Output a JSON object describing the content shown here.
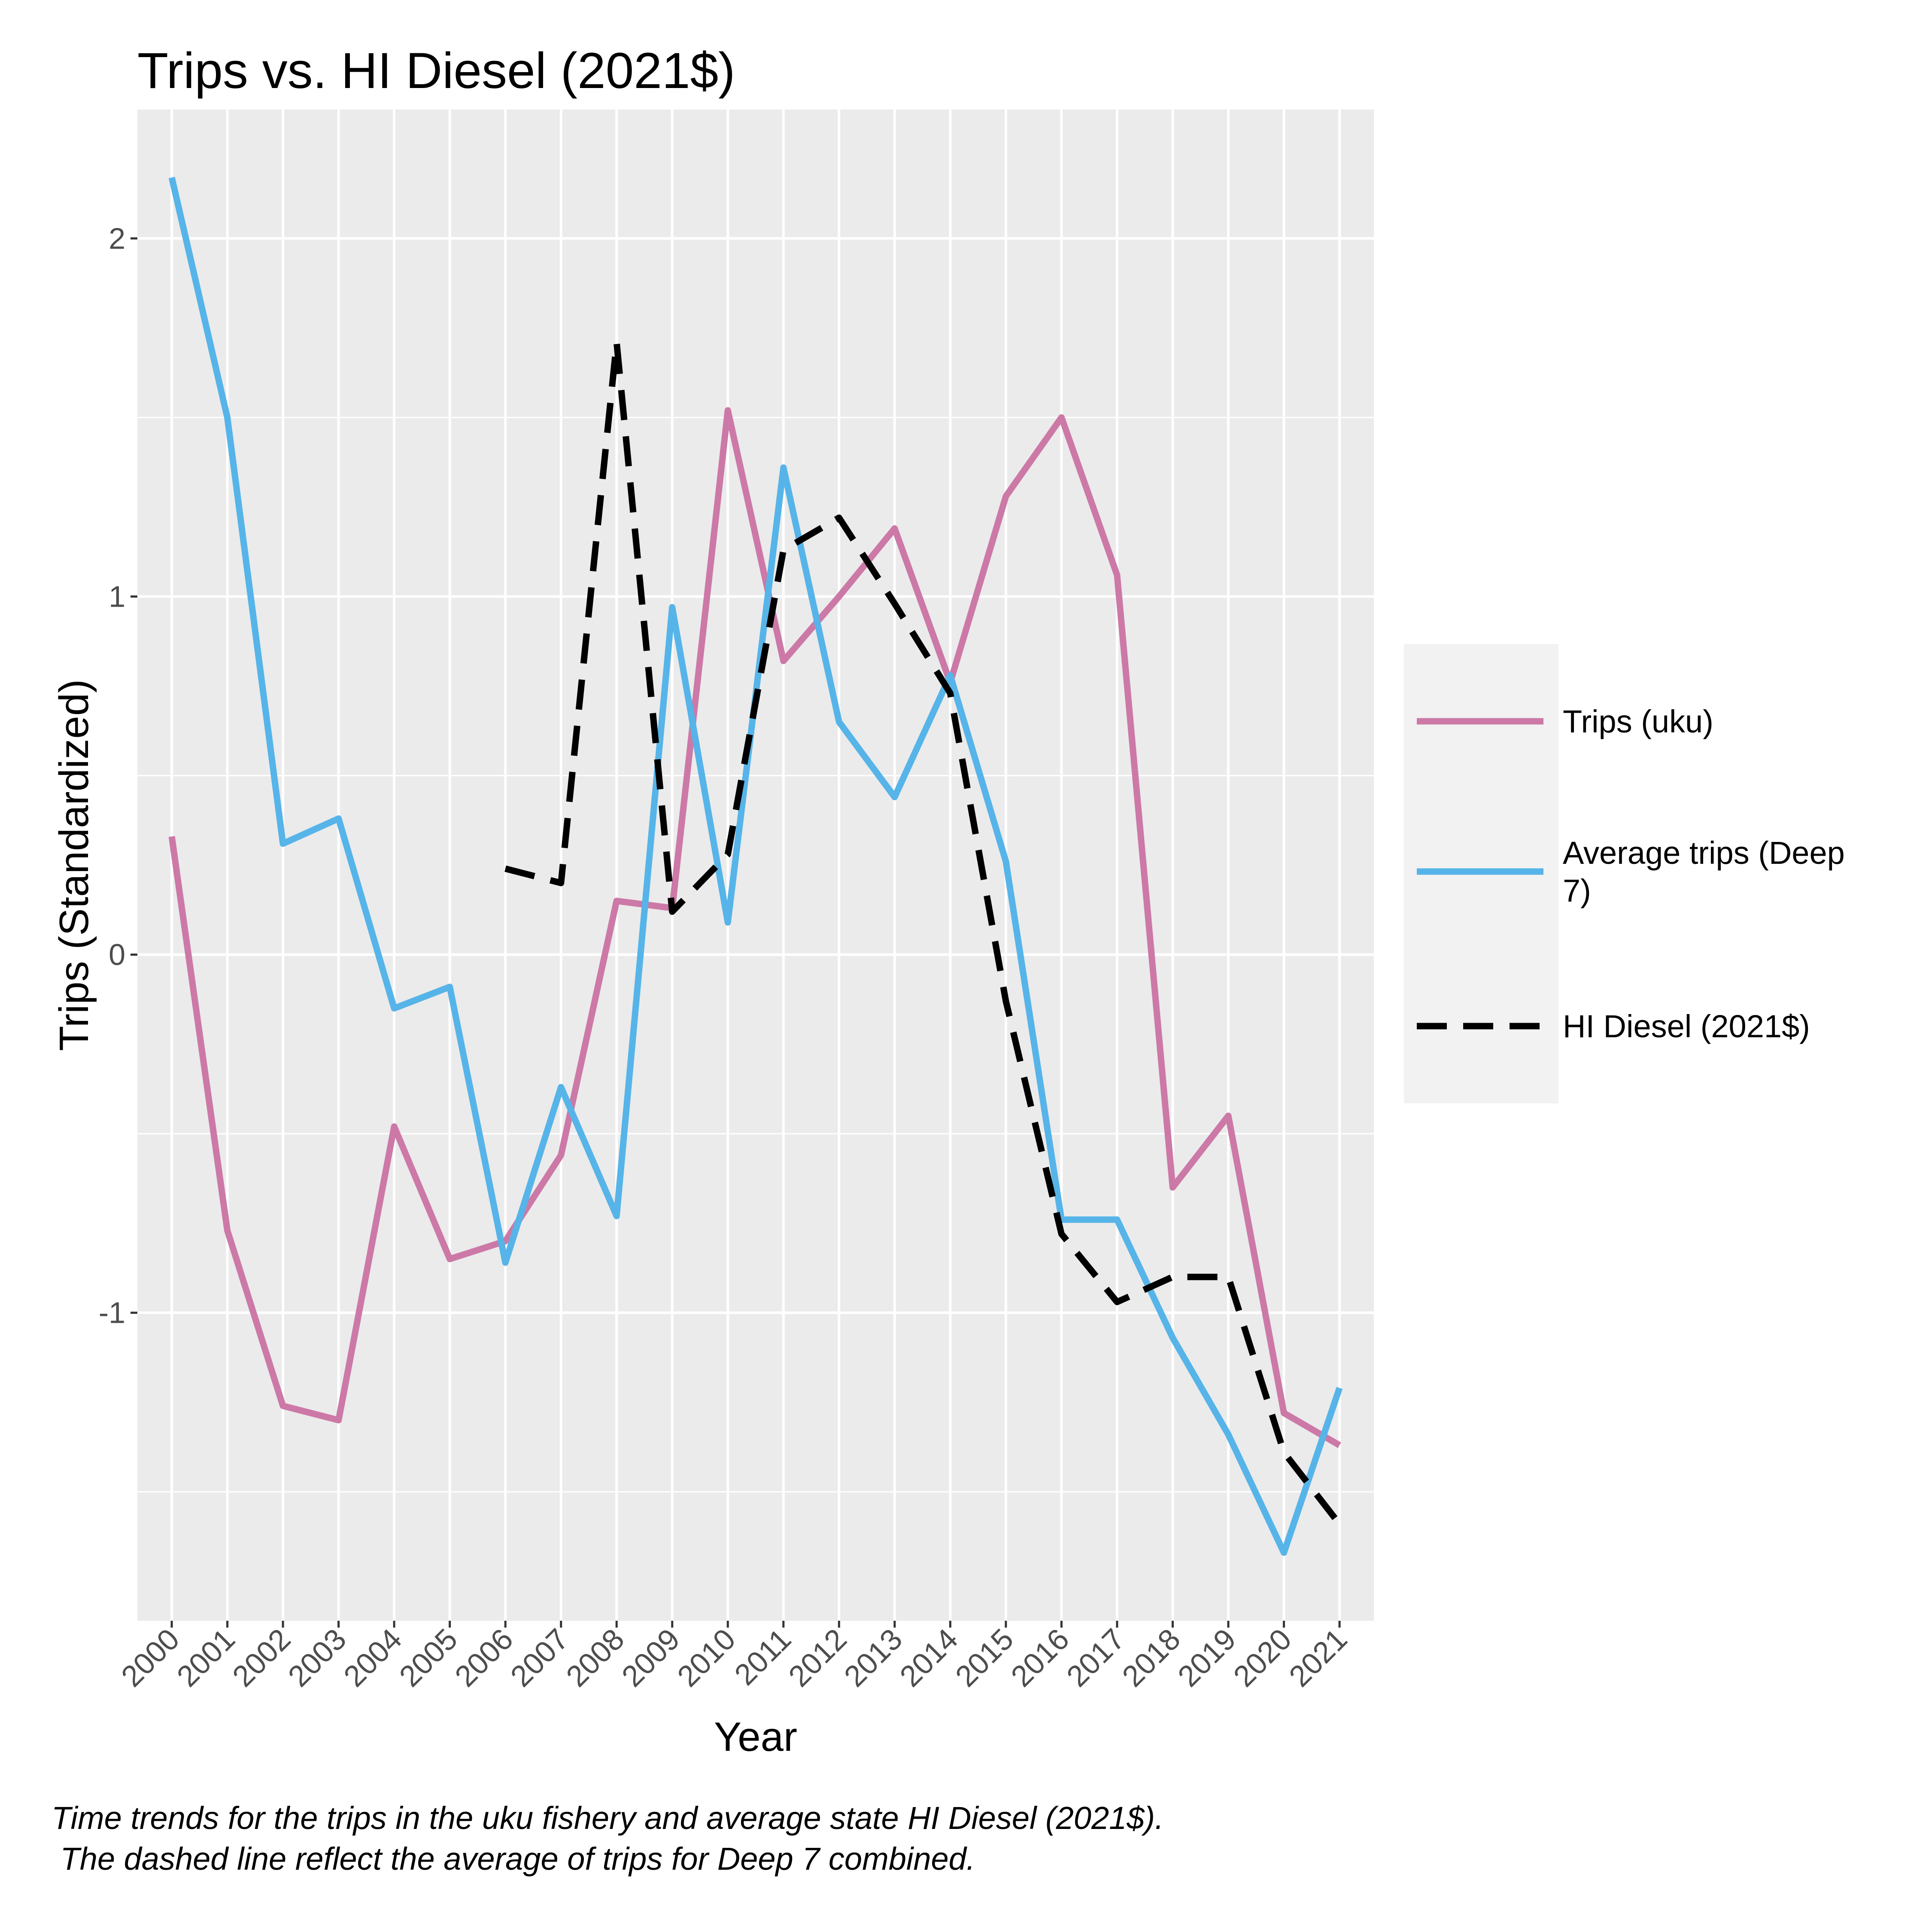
{
  "chart_data": {
    "type": "line",
    "title": "Trips vs. HI Diesel (2021$)",
    "xlabel": "Year",
    "ylabel": "Trips (Standardized)",
    "x": [
      "2000",
      "2001",
      "2002",
      "2003",
      "2004",
      "2005",
      "2006",
      "2007",
      "2008",
      "2009",
      "2010",
      "2011",
      "2012",
      "2013",
      "2014",
      "2015",
      "2016",
      "2017",
      "2018",
      "2019",
      "2020",
      "2021"
    ],
    "yticks": [
      "-1",
      "0",
      "1",
      "2"
    ],
    "ylim": [
      -1.86,
      2.36
    ],
    "grid": true,
    "legend_position": "right",
    "series": [
      {
        "name": "Trips (uku)",
        "color": "#CC79A7",
        "dashed": false,
        "values": [
          0.33,
          -0.77,
          -1.26,
          -1.3,
          -0.48,
          -0.85,
          -0.8,
          -0.56,
          0.15,
          0.13,
          1.52,
          0.82,
          1.0,
          1.19,
          0.76,
          1.28,
          1.5,
          1.06,
          -0.65,
          -0.45,
          -1.28,
          -1.37
        ]
      },
      {
        "name": "Average trips (Deep 7)",
        "color": "#56B4E9",
        "dashed": false,
        "values": [
          2.17,
          1.5,
          0.31,
          0.38,
          -0.15,
          -0.09,
          -0.86,
          -0.37,
          -0.73,
          0.97,
          0.09,
          1.36,
          0.65,
          0.44,
          0.78,
          0.26,
          -0.74,
          -0.74,
          -1.07,
          -1.34,
          -1.67,
          -1.21
        ]
      },
      {
        "name": "HI Diesel (2021$)",
        "color": "#000000",
        "dashed": true,
        "values": [
          null,
          null,
          null,
          null,
          null,
          null,
          0.24,
          0.2,
          1.71,
          0.12,
          0.28,
          1.13,
          1.22,
          0.98,
          0.73,
          -0.13,
          -0.78,
          -0.97,
          -0.9,
          -0.9,
          -1.39,
          -1.59
        ]
      }
    ]
  },
  "caption": {
    "line1": "Time trends for the trips in the uku fishery and average state HI Diesel (2021$).",
    "line2": " The dashed line reflect the average of trips for Deep 7 combined."
  }
}
